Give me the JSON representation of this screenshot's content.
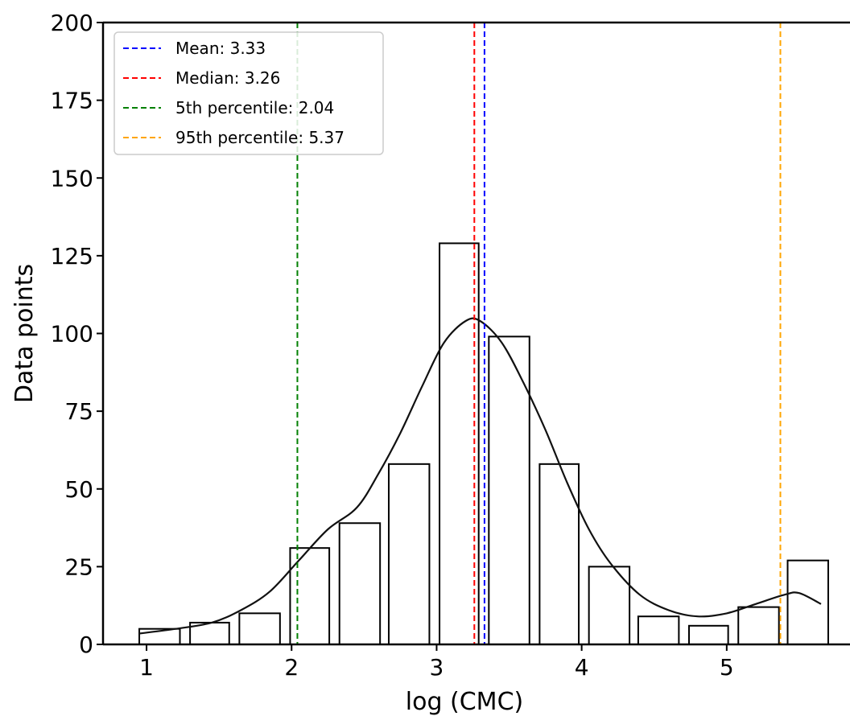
{
  "chart_data": {
    "type": "bar",
    "xlabel": "log (CMC)",
    "ylabel": "Data points",
    "xlim": [
      0.7,
      5.85
    ],
    "ylim": [
      0,
      200
    ],
    "xticks": [
      1,
      2,
      3,
      4,
      5
    ],
    "yticks": [
      0,
      25,
      50,
      75,
      100,
      125,
      150,
      175,
      200
    ],
    "grid": false,
    "legend_position": "top-left",
    "bins": [
      {
        "x0": 0.95,
        "x1": 1.23,
        "count": 5
      },
      {
        "x0": 1.3,
        "x1": 1.57,
        "count": 7
      },
      {
        "x0": 1.64,
        "x1": 1.92,
        "count": 10
      },
      {
        "x0": 1.99,
        "x1": 2.26,
        "count": 31
      },
      {
        "x0": 2.33,
        "x1": 2.61,
        "count": 39
      },
      {
        "x0": 2.67,
        "x1": 2.95,
        "count": 58
      },
      {
        "x0": 3.02,
        "x1": 3.29,
        "count": 129
      },
      {
        "x0": 3.36,
        "x1": 3.64,
        "count": 99
      },
      {
        "x0": 3.71,
        "x1": 3.98,
        "count": 58
      },
      {
        "x0": 4.05,
        "x1": 4.33,
        "count": 25
      },
      {
        "x0": 4.39,
        "x1": 4.67,
        "count": 9
      },
      {
        "x0": 4.74,
        "x1": 5.01,
        "count": 6
      },
      {
        "x0": 5.08,
        "x1": 5.36,
        "count": 12
      },
      {
        "x0": 5.42,
        "x1": 5.7,
        "count": 27
      }
    ],
    "kde": {
      "x": [
        0.95,
        1.2,
        1.45,
        1.65,
        1.85,
        2.05,
        2.25,
        2.45,
        2.6,
        2.75,
        2.9,
        3.05,
        3.2,
        3.3,
        3.45,
        3.6,
        3.75,
        3.9,
        4.05,
        4.2,
        4.4,
        4.6,
        4.8,
        5.0,
        5.2,
        5.4,
        5.5,
        5.65
      ],
      "y": [
        3.5,
        5,
        7,
        11,
        17,
        27,
        37,
        44,
        55,
        68,
        83,
        97,
        104,
        104,
        97,
        84,
        69,
        52,
        37,
        26,
        16,
        11,
        9,
        10,
        13,
        16,
        16.5,
        13
      ]
    },
    "reference_lines": [
      {
        "label": "Mean: 3.33",
        "x": 3.33,
        "color": "#0000ff"
      },
      {
        "label": "Median: 3.26",
        "x": 3.26,
        "color": "#ff0000"
      },
      {
        "label": "5th percentile: 2.04",
        "x": 2.04,
        "color": "#008000"
      },
      {
        "label": "95th percentile: 5.37",
        "x": 5.37,
        "color": "#ffa500"
      }
    ]
  }
}
